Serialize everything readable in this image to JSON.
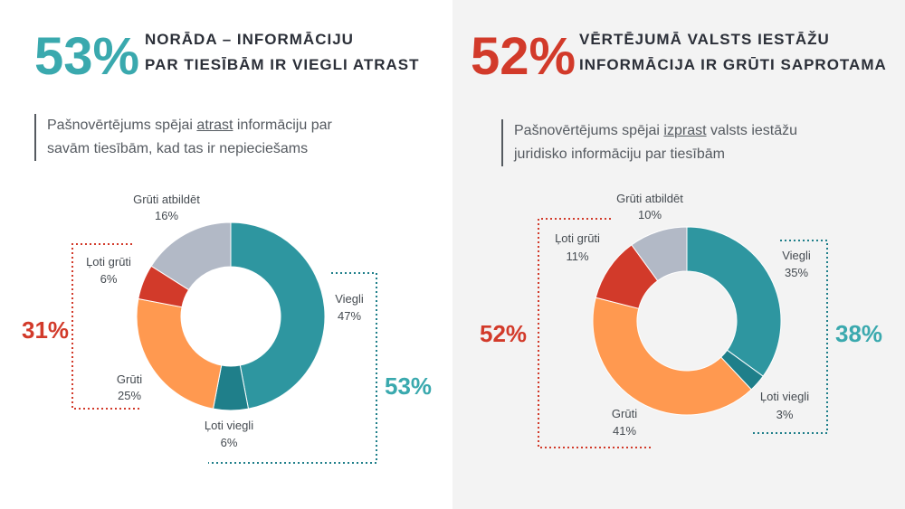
{
  "colors": {
    "teal": "#3aa9ae",
    "red": "#d23a2a",
    "dark_teal": "#1f7f8a",
    "orange": "#ff9950",
    "gray": "#b2b9c6"
  },
  "left": {
    "big_pct": "53%",
    "headline_1": "NORĀDA – INFORMĀCIJU",
    "headline_2": "PAR TIESĪBĀM IR VIEGLI ATRAST",
    "desc_pre": "Pašnovērtējums spējai ",
    "desc_underlined": "atrast",
    "desc_post": " informāciju par",
    "desc_line2": "savām tiesībām, kad tas ir nepieciešams",
    "side_left": "31%",
    "side_right": "53%"
  },
  "right": {
    "big_pct": "52%",
    "headline_1": "VĒRTĒJUMĀ VALSTS IESTĀŽU",
    "headline_2": "INFORMĀCIJA IR GRŪTI SAPROTAMA",
    "desc_pre": "Pašnovērtējums spējai ",
    "desc_underlined": "izprast",
    "desc_post": " valsts iestāžu",
    "desc_line2": "juridisko informāciju par tiesībām",
    "side_left": "52%",
    "side_right": "38%"
  },
  "chart_data": [
    {
      "type": "pie",
      "donut": true,
      "categories": [
        "Viegli",
        "Ļoti viegli",
        "Grūti",
        "Ļoti grūti",
        "Grūti atbildēt"
      ],
      "values": [
        47,
        6,
        25,
        6,
        16
      ],
      "labels": [
        "47%",
        "6%",
        "25%",
        "6%",
        "16%"
      ],
      "series_colors": [
        "#2e96a0",
        "#1f7f8a",
        "#ff9950",
        "#d23a2a",
        "#b2b9c6"
      ]
    },
    {
      "type": "pie",
      "donut": true,
      "categories": [
        "Viegli",
        "Ļoti viegli",
        "Grūti",
        "Ļoti grūti",
        "Grūti atbildēt"
      ],
      "values": [
        35,
        3,
        41,
        11,
        10
      ],
      "labels": [
        "35%",
        "3%",
        "41%",
        "11%",
        "10%"
      ],
      "series_colors": [
        "#2e96a0",
        "#1f7f8a",
        "#ff9950",
        "#d23a2a",
        "#b2b9c6"
      ]
    }
  ]
}
